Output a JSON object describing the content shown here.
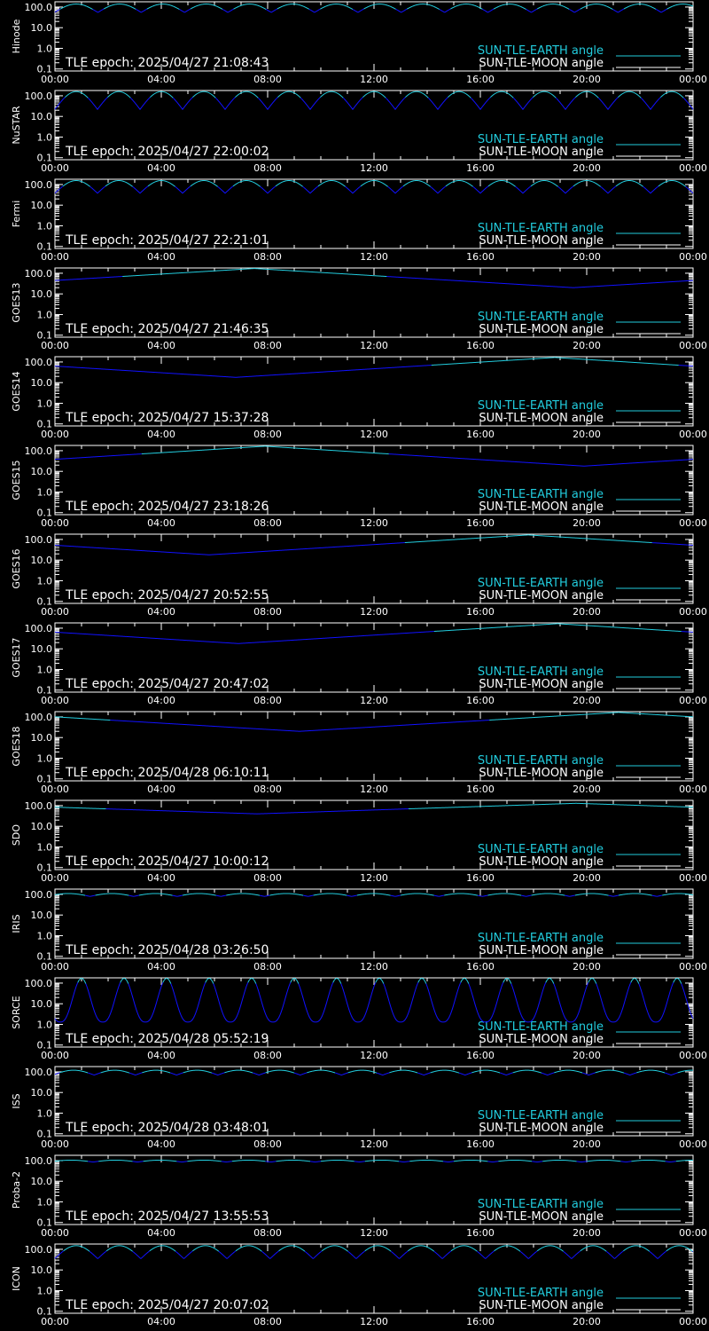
{
  "chart_data": {
    "type": "line",
    "time_ticks": [
      "00:00",
      "04:00",
      "08:00",
      "12:00",
      "16:00",
      "20:00",
      "00:00"
    ],
    "y_tick_labels": [
      "100.0",
      "10.0",
      "1.0",
      "0.1"
    ],
    "y_tick_values": [
      100,
      10,
      1,
      0.1
    ],
    "ylim": [
      0.08,
      180
    ],
    "y_scale": "log",
    "xlim_hours": [
      0,
      24
    ],
    "legend": [
      {
        "label": "SUN-TLE-EARTH angle",
        "color": "#22ccdd"
      },
      {
        "label": "SUN-TLE-MOON angle",
        "color": "#ffffff"
      }
    ],
    "colors": {
      "earth_bright": "#22ccdd",
      "earth_dark": "#1111ff",
      "moon": "#ffffff"
    },
    "panels": [
      {
        "name": "Hinode",
        "epoch": "TLE epoch: 2025/04/27 21:08:43",
        "earth": {
          "kind": "orbit",
          "period_h": 1.63,
          "phase_h": 0.8,
          "min": 55,
          "max": 140,
          "shape": 1.0,
          "v_above": 80
        }
      },
      {
        "name": "NuSTAR",
        "epoch": "TLE epoch: 2025/04/27 22:00:02",
        "earth": {
          "kind": "orbit",
          "period_h": 1.6,
          "phase_h": 0.8,
          "min": 22,
          "max": 160,
          "shape": 1.0,
          "v_above": 80
        }
      },
      {
        "name": "Fermi",
        "epoch": "TLE epoch: 2025/04/27 22:21:01",
        "earth": {
          "kind": "orbit",
          "period_h": 1.6,
          "phase_h": 0.8,
          "min": 38,
          "max": 155,
          "shape": 1.0,
          "v_above": 80
        }
      },
      {
        "name": "GOES13",
        "epoch": "TLE epoch: 2025/04/27 21:46:35",
        "earth": {
          "kind": "geo",
          "min_h": 19.5,
          "min": 20,
          "max": 170
        }
      },
      {
        "name": "GOES14",
        "epoch": "TLE epoch: 2025/04/27 15:37:28",
        "earth": {
          "kind": "geo",
          "min_h": 6.8,
          "min": 18,
          "max": 165
        }
      },
      {
        "name": "GOES15",
        "epoch": "TLE epoch: 2025/04/27 23:18:26",
        "earth": {
          "kind": "geo",
          "min_h": 19.9,
          "min": 18,
          "max": 165
        }
      },
      {
        "name": "GOES16",
        "epoch": "TLE epoch: 2025/04/27 20:52:55",
        "earth": {
          "kind": "geo",
          "min_h": 5.8,
          "min": 18,
          "max": 165
        }
      },
      {
        "name": "GOES17",
        "epoch": "TLE epoch: 2025/04/27 20:47:02",
        "earth": {
          "kind": "geo",
          "min_h": 6.9,
          "min": 18,
          "max": 165
        }
      },
      {
        "name": "GOES18",
        "epoch": "TLE epoch: 2025/04/28 06:10:11",
        "earth": {
          "kind": "geo",
          "min_h": 9.2,
          "min": 20,
          "max": 165
        }
      },
      {
        "name": "SDO",
        "epoch": "TLE epoch: 2025/04/27 10:00:12",
        "earth": {
          "kind": "geo",
          "min_h": 7.6,
          "min": 40,
          "max": 130
        }
      },
      {
        "name": "IRIS",
        "epoch": "TLE epoch: 2025/04/28 03:26:50",
        "earth": {
          "kind": "orbit",
          "period_h": 1.64,
          "phase_h": 0.5,
          "min": 80,
          "max": 110,
          "shape": 1.0,
          "v_above": 90
        }
      },
      {
        "name": "SORCE",
        "epoch": "TLE epoch: 2025/04/28 05:52:19",
        "earth": {
          "kind": "orbit",
          "period_h": 1.6,
          "phase_h": 1.0,
          "min": 1.3,
          "max": 170,
          "shape": 2.6,
          "v_above": 100
        }
      },
      {
        "name": "ISS",
        "epoch": "TLE epoch: 2025/04/28 03:48:01",
        "earth": {
          "kind": "orbit",
          "period_h": 1.55,
          "phase_h": 0.7,
          "min": 70,
          "max": 120,
          "shape": 1.0,
          "v_above": 90
        }
      },
      {
        "name": "Proba-2",
        "epoch": "TLE epoch: 2025/04/27 13:55:53",
        "earth": {
          "kind": "orbit",
          "period_h": 1.67,
          "phase_h": 0.6,
          "min": 85,
          "max": 105,
          "shape": 1.0,
          "v_above": 92
        }
      },
      {
        "name": "ICON",
        "epoch": "TLE epoch: 2025/04/27 20:07:02",
        "earth": {
          "kind": "orbit",
          "period_h": 1.62,
          "phase_h": 0.8,
          "min": 35,
          "max": 150,
          "shape": 1.0,
          "v_above": 80
        }
      }
    ]
  }
}
